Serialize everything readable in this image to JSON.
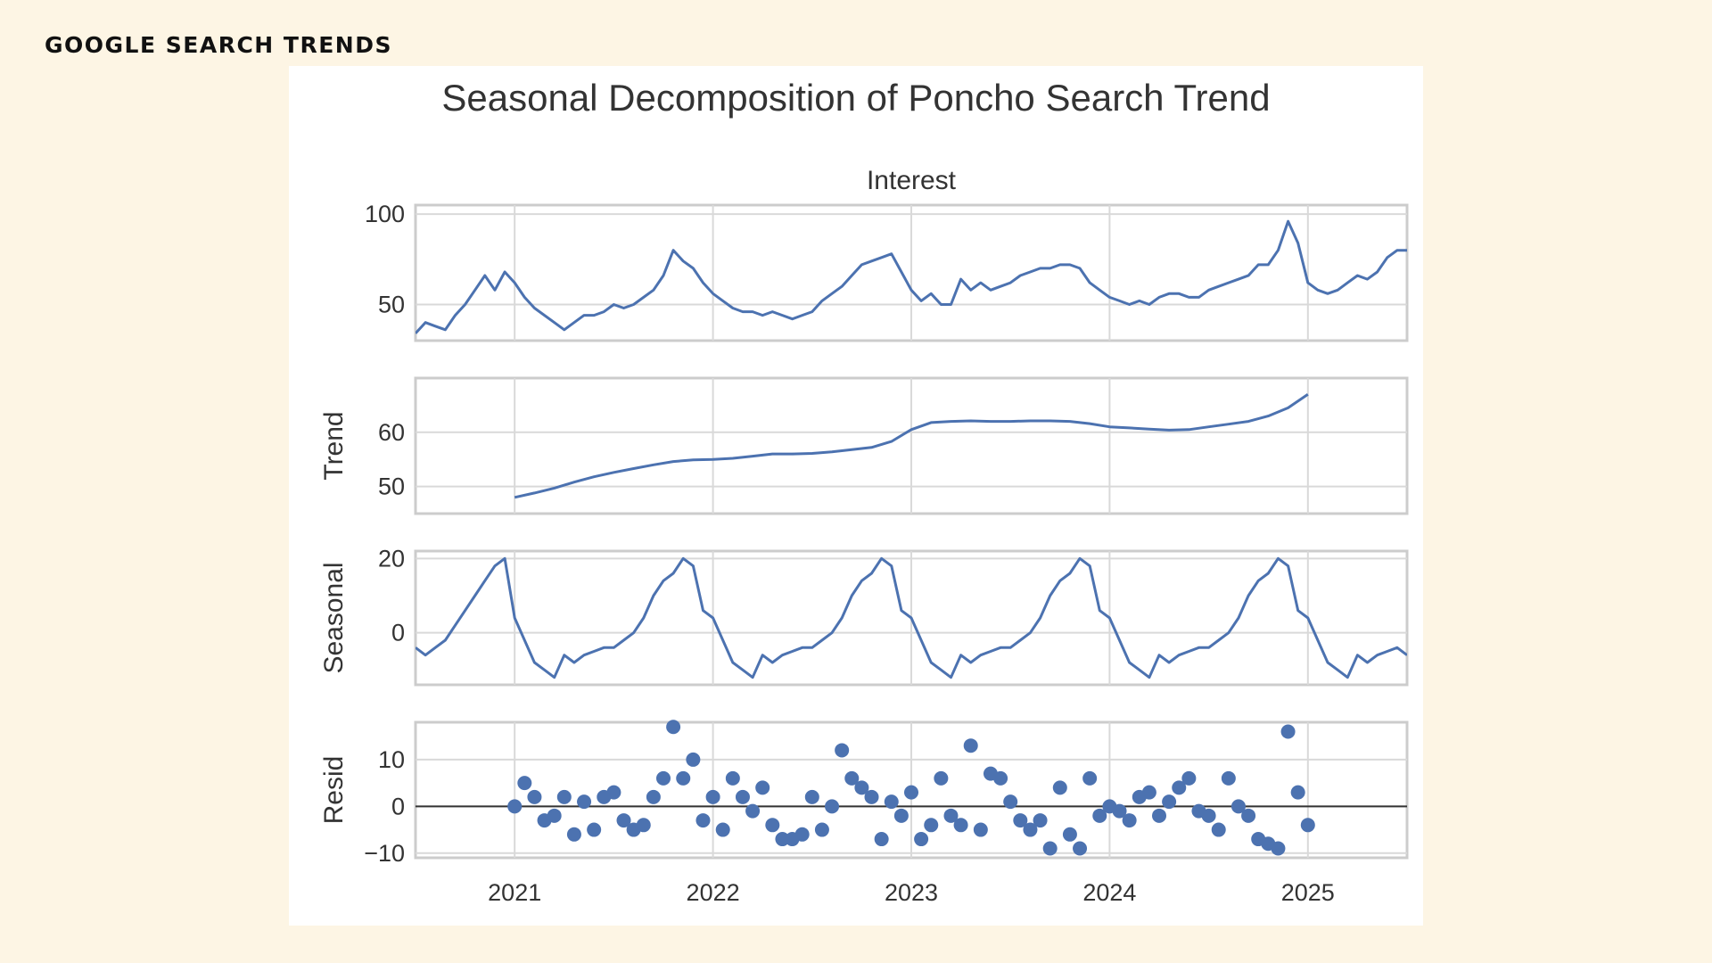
{
  "header": {
    "label": "GOOGLE SEARCH TRENDS"
  },
  "colors": {
    "series": "#4c72b0",
    "grid": "#d9d9d9",
    "frame": "#cccccc",
    "zero_line": "#333333",
    "background": "#fdf5e4"
  },
  "chart_data": {
    "type": "line",
    "title": "Seasonal Decomposition of Poncho Search Trend",
    "subtitle": "Interest",
    "x_ticks": [
      "2021",
      "2022",
      "2023",
      "2024",
      "2025"
    ],
    "x_range": [
      2020.5,
      2025.5
    ],
    "grid": true,
    "panels": [
      {
        "name": "observed",
        "ylabel": "",
        "ylim": [
          30,
          105
        ],
        "yticks": [
          50,
          100
        ],
        "kind": "line",
        "x": [
          2020.5,
          2020.55,
          2020.6,
          2020.65,
          2020.7,
          2020.75,
          2020.8,
          2020.85,
          2020.9,
          2020.95,
          2021.0,
          2021.05,
          2021.1,
          2021.15,
          2021.2,
          2021.25,
          2021.3,
          2021.35,
          2021.4,
          2021.45,
          2021.5,
          2021.55,
          2021.6,
          2021.65,
          2021.7,
          2021.75,
          2021.8,
          2021.85,
          2021.9,
          2021.95,
          2022.0,
          2022.05,
          2022.1,
          2022.15,
          2022.2,
          2022.25,
          2022.3,
          2022.35,
          2022.4,
          2022.45,
          2022.5,
          2022.55,
          2022.6,
          2022.65,
          2022.7,
          2022.75,
          2022.8,
          2022.85,
          2022.9,
          2022.95,
          2023.0,
          2023.05,
          2023.1,
          2023.15,
          2023.2,
          2023.25,
          2023.3,
          2023.35,
          2023.4,
          2023.45,
          2023.5,
          2023.55,
          2023.6,
          2023.65,
          2023.7,
          2023.75,
          2023.8,
          2023.85,
          2023.9,
          2023.95,
          2024.0,
          2024.05,
          2024.1,
          2024.15,
          2024.2,
          2024.25,
          2024.3,
          2024.35,
          2024.4,
          2024.45,
          2024.5,
          2024.55,
          2024.6,
          2024.65,
          2024.7,
          2024.75,
          2024.8,
          2024.85,
          2024.9,
          2024.95,
          2025.0,
          2025.05,
          2025.1,
          2025.15,
          2025.2,
          2025.25,
          2025.3,
          2025.35,
          2025.4,
          2025.45,
          2025.5
        ],
        "values": [
          34,
          40,
          38,
          36,
          44,
          50,
          58,
          66,
          58,
          68,
          62,
          54,
          48,
          44,
          40,
          36,
          40,
          44,
          44,
          46,
          50,
          48,
          50,
          54,
          58,
          66,
          80,
          74,
          70,
          62,
          56,
          52,
          48,
          46,
          46,
          44,
          46,
          44,
          42,
          44,
          46,
          52,
          56,
          60,
          66,
          72,
          74,
          76,
          78,
          68,
          58,
          52,
          56,
          50,
          50,
          64,
          58,
          62,
          58,
          60,
          62,
          66,
          68,
          70,
          70,
          72,
          72,
          70,
          62,
          58,
          54,
          52,
          50,
          52,
          50,
          54,
          56,
          56,
          54,
          54,
          58,
          60,
          62,
          64,
          66,
          72,
          72,
          80,
          96,
          84,
          62,
          58,
          56,
          58,
          62,
          66,
          64,
          68,
          76,
          80,
          80
        ]
      },
      {
        "name": "trend",
        "ylabel": "Trend",
        "ylim": [
          45,
          70
        ],
        "yticks": [
          50,
          60
        ],
        "kind": "line",
        "x": [
          2021.0,
          2021.1,
          2021.2,
          2021.3,
          2021.4,
          2021.5,
          2021.6,
          2021.7,
          2021.8,
          2021.9,
          2022.0,
          2022.1,
          2022.2,
          2022.3,
          2022.4,
          2022.5,
          2022.6,
          2022.7,
          2022.8,
          2022.9,
          2023.0,
          2023.1,
          2023.2,
          2023.3,
          2023.4,
          2023.5,
          2023.6,
          2023.7,
          2023.8,
          2023.9,
          2024.0,
          2024.1,
          2024.2,
          2024.3,
          2024.4,
          2024.5,
          2024.6,
          2024.7,
          2024.8,
          2024.9,
          2025.0
        ],
        "values": [
          48,
          48.8,
          49.7,
          50.8,
          51.8,
          52.6,
          53.3,
          54.0,
          54.6,
          54.9,
          55.0,
          55.2,
          55.6,
          56.0,
          56.0,
          56.1,
          56.4,
          56.8,
          57.2,
          58.3,
          60.5,
          61.8,
          62.0,
          62.1,
          62.0,
          62.0,
          62.1,
          62.1,
          62.0,
          61.6,
          61.0,
          60.8,
          60.6,
          60.4,
          60.5,
          61.0,
          61.5,
          62.0,
          63.0,
          64.5,
          67.0
        ]
      },
      {
        "name": "seasonal",
        "ylabel": "Seasonal",
        "ylim": [
          -14,
          22
        ],
        "yticks": [
          0,
          20
        ],
        "kind": "line",
        "x": [
          2020.5,
          2020.55,
          2020.6,
          2020.65,
          2020.7,
          2020.75,
          2020.8,
          2020.85,
          2020.9,
          2020.95,
          2021.0,
          2021.05,
          2021.1,
          2021.15,
          2021.2,
          2021.25,
          2021.3,
          2021.35,
          2021.4,
          2021.45,
          2021.5,
          2021.55,
          2021.6,
          2021.65,
          2021.7,
          2021.75,
          2021.8,
          2021.85,
          2021.9,
          2021.95,
          2022.0,
          2022.05,
          2022.1,
          2022.15,
          2022.2,
          2022.25,
          2022.3,
          2022.35,
          2022.4,
          2022.45,
          2022.5,
          2022.55,
          2022.6,
          2022.65,
          2022.7,
          2022.75,
          2022.8,
          2022.85,
          2022.9,
          2022.95,
          2023.0,
          2023.05,
          2023.1,
          2023.15,
          2023.2,
          2023.25,
          2023.3,
          2023.35,
          2023.4,
          2023.45,
          2023.5,
          2023.55,
          2023.6,
          2023.65,
          2023.7,
          2023.75,
          2023.8,
          2023.85,
          2023.9,
          2023.95,
          2024.0,
          2024.05,
          2024.1,
          2024.15,
          2024.2,
          2024.25,
          2024.3,
          2024.35,
          2024.4,
          2024.45,
          2024.5,
          2024.55,
          2024.6,
          2024.65,
          2024.7,
          2024.75,
          2024.8,
          2024.85,
          2024.9,
          2024.95,
          2025.0,
          2025.05,
          2025.1,
          2025.15,
          2025.2,
          2025.25,
          2025.3,
          2025.35,
          2025.4,
          2025.45,
          2025.5
        ],
        "values": [
          -4,
          -6,
          -4,
          -2,
          2,
          6,
          10,
          14,
          18,
          20,
          4,
          -2,
          -8,
          -10,
          -12,
          -6,
          -8,
          -6,
          -5,
          -4,
          -4,
          -2,
          0,
          4,
          10,
          14,
          16,
          20,
          18,
          6,
          4,
          -2,
          -8,
          -10,
          -12,
          -6,
          -8,
          -6,
          -5,
          -4,
          -4,
          -2,
          0,
          4,
          10,
          14,
          16,
          20,
          18,
          6,
          4,
          -2,
          -8,
          -10,
          -12,
          -6,
          -8,
          -6,
          -5,
          -4,
          -4,
          -2,
          0,
          4,
          10,
          14,
          16,
          20,
          18,
          6,
          4,
          -2,
          -8,
          -10,
          -12,
          -6,
          -8,
          -6,
          -5,
          -4,
          -4,
          -2,
          0,
          4,
          10,
          14,
          16,
          20,
          18,
          6,
          4,
          -2,
          -8,
          -10,
          -12,
          -6,
          -8,
          -6,
          -5,
          -4,
          -6
        ]
      },
      {
        "name": "resid",
        "ylabel": "Resid",
        "ylim": [
          -11,
          18
        ],
        "yticks": [
          -10,
          0,
          10
        ],
        "kind": "scatter",
        "zero_line": true,
        "x": [
          2021.0,
          2021.05,
          2021.1,
          2021.15,
          2021.2,
          2021.25,
          2021.3,
          2021.35,
          2021.4,
          2021.45,
          2021.5,
          2021.55,
          2021.6,
          2021.65,
          2021.7,
          2021.75,
          2021.8,
          2021.85,
          2021.9,
          2021.95,
          2022.0,
          2022.05,
          2022.1,
          2022.15,
          2022.2,
          2022.25,
          2022.3,
          2022.35,
          2022.4,
          2022.45,
          2022.5,
          2022.55,
          2022.6,
          2022.65,
          2022.7,
          2022.75,
          2022.8,
          2022.85,
          2022.9,
          2022.95,
          2023.0,
          2023.05,
          2023.1,
          2023.15,
          2023.2,
          2023.25,
          2023.3,
          2023.35,
          2023.4,
          2023.45,
          2023.5,
          2023.55,
          2023.6,
          2023.65,
          2023.7,
          2023.75,
          2023.8,
          2023.85,
          2023.9,
          2023.95,
          2024.0,
          2024.05,
          2024.1,
          2024.15,
          2024.2,
          2024.25,
          2024.3,
          2024.35,
          2024.4,
          2024.45,
          2024.5,
          2024.55,
          2024.6,
          2024.65,
          2024.7,
          2024.75,
          2024.8,
          2024.85,
          2024.9,
          2024.95,
          2025.0
        ],
        "values": [
          0,
          5,
          2,
          -3,
          -2,
          2,
          -6,
          1,
          -5,
          2,
          3,
          -3,
          -5,
          -4,
          2,
          6,
          17,
          6,
          10,
          -3,
          2,
          -5,
          6,
          2,
          -1,
          4,
          -4,
          -7,
          -7,
          -6,
          2,
          -5,
          0,
          12,
          6,
          4,
          2,
          -7,
          1,
          -2,
          3,
          -7,
          -4,
          6,
          -2,
          -4,
          13,
          -5,
          7,
          6,
          1,
          -3,
          -5,
          -3,
          -9,
          4,
          -6,
          -9,
          6,
          -2,
          0,
          -1,
          -3,
          2,
          3,
          -2,
          1,
          4,
          6,
          -1,
          -2,
          -5,
          6,
          0,
          -2,
          -7,
          -8,
          -9,
          16,
          3,
          -4
        ]
      }
    ]
  }
}
